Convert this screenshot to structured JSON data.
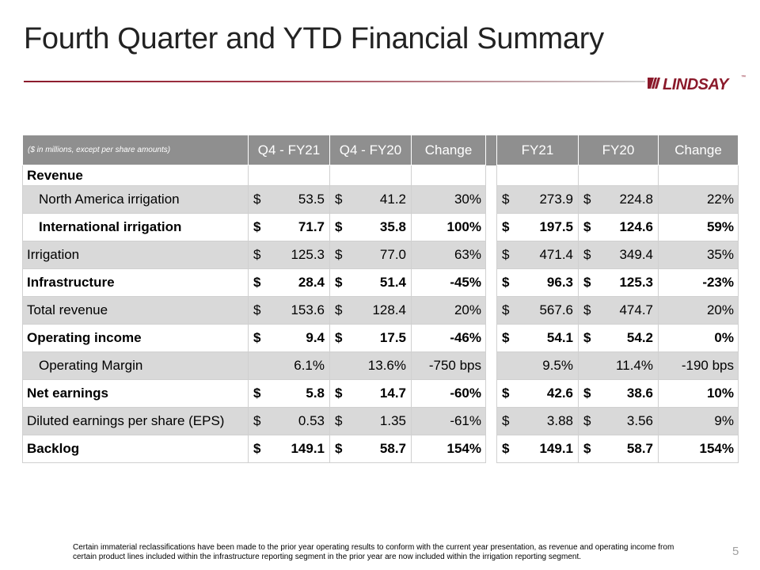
{
  "slide": {
    "title": "Fourth Quarter and YTD Financial Summary",
    "logo_text": "LINDSAY",
    "logo_tm": "™",
    "page_number": "5",
    "footnote": "Certain immaterial reclassifications have been made to the prior year operating results to conform with the current year presentation, as revenue and operating income from certain product lines included within the infrastructure reporting segment in the prior year are now included within the irrigation reporting segment."
  },
  "table": {
    "note": "($ in millions, except per share amounts)",
    "headers": [
      "Q4 - FY21",
      "Q4 - FY20",
      "Change",
      "FY21",
      "FY20",
      "Change"
    ],
    "currency_symbol": "$",
    "section_label": "Revenue",
    "rows": [
      {
        "label": "North America irrigation",
        "vals": [
          "53.5",
          "41.2"
        ],
        "chg": "30%",
        "vals2": [
          "273.9",
          "224.8"
        ],
        "chg2": "22%"
      },
      {
        "label": "International irrigation",
        "vals": [
          "71.7",
          "35.8"
        ],
        "chg": "100%",
        "vals2": [
          "197.5",
          "124.6"
        ],
        "chg2": "59%"
      },
      {
        "label": "Irrigation",
        "vals": [
          "125.3",
          "77.0"
        ],
        "chg": "63%",
        "vals2": [
          "471.4",
          "349.4"
        ],
        "chg2": "35%"
      },
      {
        "label": "Infrastructure",
        "vals": [
          "28.4",
          "51.4"
        ],
        "chg": "-45%",
        "vals2": [
          "96.3",
          "125.3"
        ],
        "chg2": "-23%"
      },
      {
        "label": "Total revenue",
        "vals": [
          "153.6",
          "128.4"
        ],
        "chg": "20%",
        "vals2": [
          "567.6",
          "474.7"
        ],
        "chg2": "20%"
      },
      {
        "label": "Operating income",
        "vals": [
          "9.4",
          "17.5"
        ],
        "chg": "-46%",
        "vals2": [
          "54.1",
          "54.2"
        ],
        "chg2": "0%"
      },
      {
        "label": "Operating Margin",
        "vals": [
          "6.1%",
          "13.6%"
        ],
        "chg": "-750 bps",
        "vals2": [
          "9.5%",
          "11.4%"
        ],
        "chg2": "-190 bps"
      },
      {
        "label": "Net earnings",
        "vals": [
          "5.8",
          "14.7"
        ],
        "chg": "-60%",
        "vals2": [
          "42.6",
          "38.6"
        ],
        "chg2": "10%"
      },
      {
        "label": "Diluted earnings per share (EPS)",
        "vals": [
          "0.53",
          "1.35"
        ],
        "chg": "-61%",
        "vals2": [
          "3.88",
          "3.56"
        ],
        "chg2": "9%"
      },
      {
        "label": "Backlog",
        "vals": [
          "149.1",
          "58.7"
        ],
        "chg": "154%",
        "vals2": [
          "149.1",
          "58.7"
        ],
        "chg2": "154%"
      }
    ]
  },
  "colors": {
    "accent": "#8b1a2b",
    "header_bg": "#8f8f8f",
    "shaded_row": "#d9d9d9"
  }
}
